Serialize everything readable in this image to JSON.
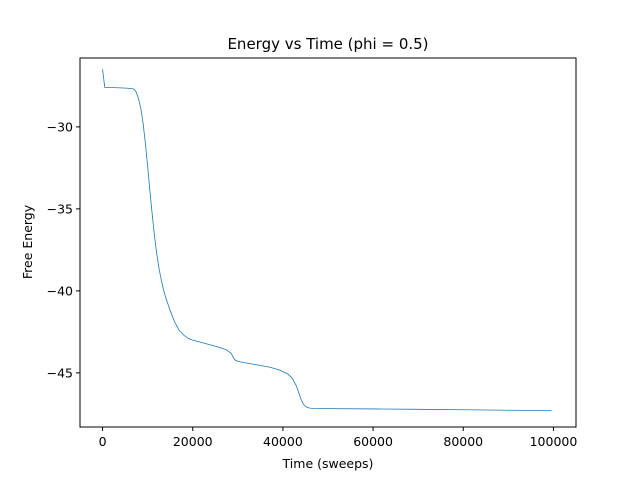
{
  "chart_data": {
    "type": "line",
    "title": "Energy vs Time (phi = 0.5)",
    "xlabel": "Time (sweeps)",
    "ylabel": "Free Energy",
    "xlim": [
      -5000,
      105000
    ],
    "ylim": [
      -48.3,
      -25.8
    ],
    "xticks": [
      0,
      20000,
      40000,
      60000,
      80000,
      100000
    ],
    "yticks": [
      -30,
      -35,
      -40,
      -45
    ],
    "ytick_labels": [
      "−30",
      "−35",
      "−40",
      "−45"
    ],
    "grid": false,
    "legend": "none",
    "series": [
      {
        "color": "#1f77b4",
        "x": [
          0,
          500,
          1000,
          2000,
          4000,
          6000,
          7000,
          7500,
          8000,
          8500,
          9000,
          9500,
          10000,
          10500,
          11000,
          11500,
          12000,
          12500,
          13000,
          13500,
          14000,
          14500,
          15000,
          16000,
          17000,
          18000,
          19000,
          20000,
          22000,
          24000,
          26000,
          27500,
          28500,
          29300,
          30000,
          31000,
          33000,
          35000,
          37000,
          39000,
          41000,
          42000,
          43000,
          43500,
          44000,
          44500,
          45000,
          45500,
          46000,
          47000,
          48000,
          50000,
          60000,
          70000,
          80000,
          90000,
          99500
        ],
        "y": [
          -26.5,
          -27.6,
          -27.6,
          -27.6,
          -27.62,
          -27.65,
          -27.7,
          -27.9,
          -28.3,
          -28.9,
          -29.8,
          -31.0,
          -32.4,
          -33.9,
          -35.3,
          -36.6,
          -37.7,
          -38.6,
          -39.3,
          -39.9,
          -40.4,
          -40.8,
          -41.2,
          -41.9,
          -42.4,
          -42.7,
          -42.9,
          -43.0,
          -43.15,
          -43.3,
          -43.45,
          -43.6,
          -43.8,
          -44.2,
          -44.3,
          -44.35,
          -44.45,
          -44.55,
          -44.65,
          -44.8,
          -45.05,
          -45.3,
          -45.8,
          -46.2,
          -46.6,
          -46.9,
          -47.05,
          -47.12,
          -47.15,
          -47.17,
          -47.18,
          -47.18,
          -47.2,
          -47.22,
          -47.25,
          -47.28,
          -47.3
        ]
      }
    ]
  }
}
